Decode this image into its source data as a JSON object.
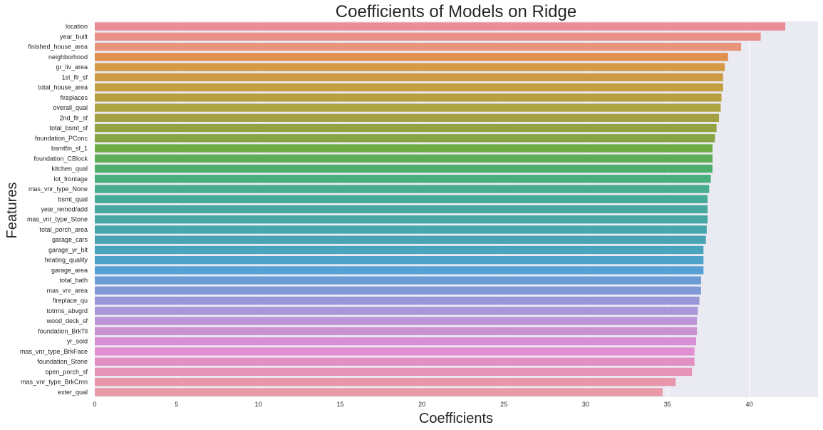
{
  "chart_data": {
    "type": "bar",
    "orientation": "horizontal",
    "title": "Coefficients of Models on Ridge",
    "xlabel": "Coefficients",
    "ylabel": "Features",
    "xlim": [
      0,
      44.2
    ],
    "xticks": [
      0,
      5,
      10,
      15,
      20,
      25,
      30,
      35,
      40
    ],
    "grid": true,
    "background": "#eaeaf2",
    "categories": [
      "location",
      "year_built",
      "finished_house_area",
      "neighborhood",
      "gr_liv_area",
      "1st_flr_sf",
      "total_house_area",
      "fireplaces",
      "overall_qual",
      "2nd_flr_sf",
      "total_bsmt_sf",
      "foundation_PConc",
      "bsmtfin_sf_1",
      "foundation_CBlock",
      "kitchen_qual",
      "lot_frontage",
      "mas_vnr_type_None",
      "bsmt_qual",
      "year_remod/add",
      "mas_vnr_type_Stone",
      "total_porch_area",
      "garage_cars",
      "garage_yr_blt",
      "heating_quality",
      "garage_area",
      "total_bath",
      "mas_vnr_area",
      "fireplace_qu",
      "totrms_abvgrd",
      "wood_deck_sf",
      "foundation_BrkTil",
      "yr_sold",
      "mas_vnr_type_BrkFace",
      "foundation_Stone",
      "open_porch_sf",
      "mas_vnr_type_BrkCmn",
      "exter_qual"
    ],
    "values": [
      42.2,
      40.7,
      39.5,
      38.7,
      38.5,
      38.4,
      38.4,
      38.3,
      38.25,
      38.15,
      38.0,
      37.9,
      37.75,
      37.75,
      37.75,
      37.65,
      37.55,
      37.45,
      37.45,
      37.45,
      37.4,
      37.35,
      37.2,
      37.2,
      37.2,
      37.05,
      37.05,
      36.95,
      36.85,
      36.8,
      36.8,
      36.75,
      36.65,
      36.65,
      36.5,
      35.5,
      34.7
    ],
    "colors": [
      "#ea8d96",
      "#ea8e88",
      "#e8947a",
      "#e08f4c",
      "#d59a44",
      "#cc9a40",
      "#c39f3f",
      "#b9a03f",
      "#aea341",
      "#a5a043",
      "#94a242",
      "#87a542",
      "#6ead45",
      "#5eae55",
      "#4eaf6a",
      "#48ae7c",
      "#48ad8c",
      "#47aa96",
      "#47a99e",
      "#47a7a5",
      "#48a6ad",
      "#49a5b3",
      "#4ba4bd",
      "#4ea2c9",
      "#57a0d3",
      "#6b9cd6",
      "#8199d8",
      "#9797d8",
      "#a997d9",
      "#bb95d7",
      "#c993d3",
      "#d890d5",
      "#e08fd0",
      "#e48fc3",
      "#e793b7",
      "#e897ab",
      "#e89aa6"
    ]
  }
}
